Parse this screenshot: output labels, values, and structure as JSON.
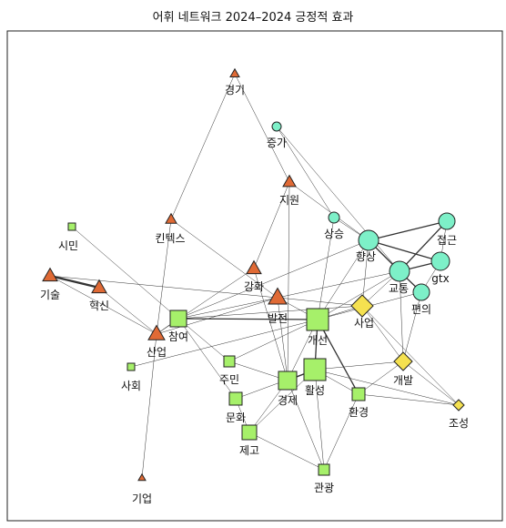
{
  "title": "어휘 네트워크 2024–2024 긍정적 효과",
  "colors": {
    "triangle": "#e06a35",
    "square": "#a6f06a",
    "diamond": "#f5e150",
    "circle": "#7df0c8",
    "stroke": "#222222",
    "edge": "#333333"
  },
  "nodes": [
    {
      "id": "경기",
      "shape": "triangle"
    },
    {
      "id": "증가",
      "shape": "circle"
    },
    {
      "id": "지원",
      "shape": "triangle"
    },
    {
      "id": "상승",
      "shape": "circle"
    },
    {
      "id": "향상",
      "shape": "circle"
    },
    {
      "id": "접근",
      "shape": "circle"
    },
    {
      "id": "gtx",
      "shape": "circle"
    },
    {
      "id": "교통",
      "shape": "circle"
    },
    {
      "id": "편의",
      "shape": "circle"
    },
    {
      "id": "시민",
      "shape": "square"
    },
    {
      "id": "킨텍스",
      "shape": "triangle"
    },
    {
      "id": "기술",
      "shape": "triangle"
    },
    {
      "id": "혁신",
      "shape": "triangle"
    },
    {
      "id": "강화",
      "shape": "triangle"
    },
    {
      "id": "발전",
      "shape": "triangle"
    },
    {
      "id": "사업",
      "shape": "diamond"
    },
    {
      "id": "참여",
      "shape": "square"
    },
    {
      "id": "개선",
      "shape": "square"
    },
    {
      "id": "산업",
      "shape": "triangle"
    },
    {
      "id": "사회",
      "shape": "square"
    },
    {
      "id": "주민",
      "shape": "square"
    },
    {
      "id": "개발",
      "shape": "diamond"
    },
    {
      "id": "경제",
      "shape": "square"
    },
    {
      "id": "활성",
      "shape": "square"
    },
    {
      "id": "환경",
      "shape": "square"
    },
    {
      "id": "조성",
      "shape": "diamond"
    },
    {
      "id": "문화",
      "shape": "square"
    },
    {
      "id": "제고",
      "shape": "square"
    },
    {
      "id": "관광",
      "shape": "square"
    },
    {
      "id": "기업",
      "shape": "triangle"
    }
  ],
  "edges": [
    [
      "경기",
      "킨텍스",
      1
    ],
    [
      "경기",
      "지원",
      1
    ],
    [
      "증가",
      "상승",
      1
    ],
    [
      "증가",
      "교통",
      1
    ],
    [
      "지원",
      "강화",
      1
    ],
    [
      "지원",
      "향상",
      1
    ],
    [
      "지원",
      "경제",
      1
    ],
    [
      "상승",
      "향상",
      1
    ],
    [
      "상승",
      "개선",
      1
    ],
    [
      "향상",
      "접근",
      2
    ],
    [
      "향상",
      "교통",
      2
    ],
    [
      "향상",
      "gtx",
      2
    ],
    [
      "향상",
      "개선",
      1
    ],
    [
      "향상",
      "사업",
      1
    ],
    [
      "향상",
      "참여",
      1
    ],
    [
      "접근",
      "교통",
      2
    ],
    [
      "접근",
      "gtx",
      1
    ],
    [
      "gtx",
      "교통",
      2
    ],
    [
      "gtx",
      "편의",
      1
    ],
    [
      "교통",
      "편의",
      2
    ],
    [
      "교통",
      "개선",
      1
    ],
    [
      "교통",
      "사업",
      1
    ],
    [
      "교통",
      "발전",
      1
    ],
    [
      "교통",
      "개발",
      1
    ],
    [
      "편의",
      "개선",
      1
    ],
    [
      "편의",
      "개발",
      1
    ],
    [
      "시민",
      "참여",
      1
    ],
    [
      "킨텍스",
      "산업",
      1
    ],
    [
      "킨텍스",
      "발전",
      1
    ],
    [
      "기술",
      "혁신",
      3
    ],
    [
      "기술",
      "산업",
      1
    ],
    [
      "기술",
      "발전",
      1
    ],
    [
      "혁신",
      "산업",
      1
    ],
    [
      "강화",
      "산업",
      1
    ],
    [
      "강화",
      "경제",
      1
    ],
    [
      "발전",
      "사업",
      1
    ],
    [
      "발전",
      "산업",
      1
    ],
    [
      "발전",
      "개선",
      1
    ],
    [
      "발전",
      "경제",
      1
    ],
    [
      "발전",
      "참여",
      1
    ],
    [
      "사업",
      "개선",
      1
    ],
    [
      "사업",
      "개발",
      1
    ],
    [
      "사업",
      "참여",
      1
    ],
    [
      "사업",
      "조성",
      1
    ],
    [
      "참여",
      "주민",
      1
    ],
    [
      "참여",
      "개선",
      2
    ],
    [
      "참여",
      "문화",
      1
    ],
    [
      "참여",
      "산업",
      1
    ],
    [
      "개선",
      "경제",
      1
    ],
    [
      "개선",
      "활성",
      2
    ],
    [
      "개선",
      "환경",
      2
    ],
    [
      "개선",
      "주민",
      1
    ],
    [
      "사회",
      "개선",
      1
    ],
    [
      "주민",
      "경제",
      1
    ],
    [
      "개발",
      "조성",
      1
    ],
    [
      "개발",
      "환경",
      1
    ],
    [
      "개발",
      "활성",
      1
    ],
    [
      "경제",
      "활성",
      2
    ],
    [
      "경제",
      "제고",
      1
    ],
    [
      "경제",
      "관광",
      1
    ],
    [
      "활성",
      "환경",
      1
    ],
    [
      "활성",
      "관광",
      1
    ],
    [
      "활성",
      "문화",
      1
    ],
    [
      "환경",
      "조성",
      1
    ],
    [
      "환경",
      "관광",
      1
    ],
    [
      "문화",
      "제고",
      1
    ],
    [
      "제고",
      "관광",
      1
    ],
    [
      "제고",
      "활성",
      1
    ],
    [
      "산업",
      "기업",
      1
    ],
    [
      "조성",
      "활성",
      1
    ]
  ]
}
